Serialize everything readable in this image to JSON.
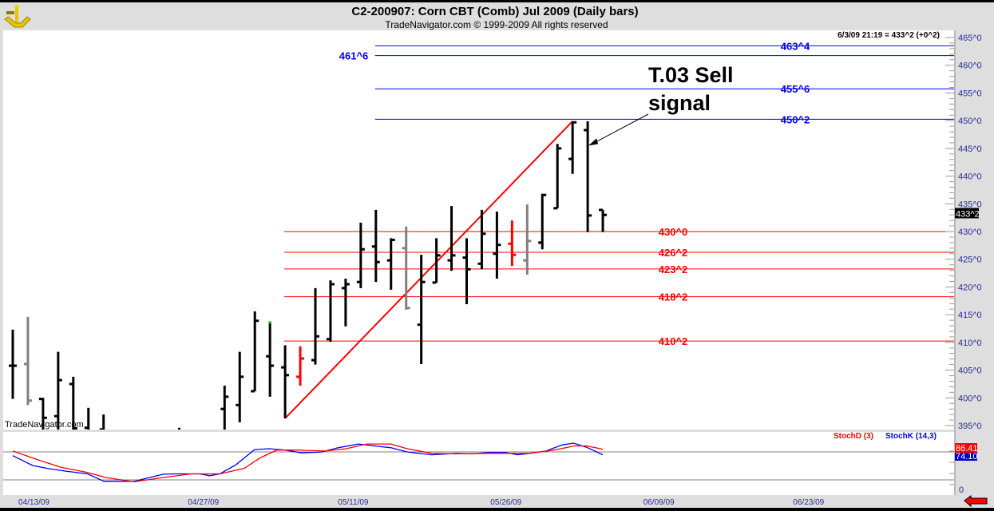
{
  "header": {
    "title": "C2-200907:  Corn CBT (Comb) Jul 2009  (Daily bars)",
    "subtitle": "TradeNavigator.com © 1999-2009 All rights reserved",
    "quote": "6/3/09 21:19 = 433^2 (+0^2)",
    "watermark": "TradeNavigator.com",
    "logo": "sextant-logo-icon"
  },
  "colors": {
    "up": "#000000",
    "gray": "#808080",
    "red": "#ff0000",
    "blue": "#0000ff",
    "axis_text": "#2b2b9b",
    "panel_bg": "#dedede"
  },
  "chart_data": {
    "type": "ohlc",
    "title": "C2-200907: Corn CBT (Comb) Jul 2009 (Daily bars)",
    "x_unit": "trading-day index",
    "ylim": [
      395,
      465
    ],
    "y_ticks": [
      "465^0",
      "460^0",
      "455^0",
      "450^0",
      "445^0",
      "440^0",
      "435^0",
      "430^0",
      "425^0",
      "420^0",
      "415^0",
      "410^0",
      "405^0",
      "400^0",
      "395^0"
    ],
    "y_tick_values": [
      465,
      460,
      455,
      450,
      445,
      440,
      435,
      430,
      425,
      420,
      415,
      410,
      405,
      400,
      395
    ],
    "last_price_label": "433^2",
    "last_price": 433.25,
    "x_ticks": [
      {
        "label": "04/13/09",
        "i": 1.4
      },
      {
        "label": "04/27/09",
        "i": 12.6
      },
      {
        "label": "05/11/09",
        "i": 22.5
      },
      {
        "label": "05/26/09",
        "i": 32.6
      },
      {
        "label": "06/09/09",
        "i": 42.7
      },
      {
        "label": "06/23/09",
        "i": 52.6
      }
    ],
    "bars": [
      {
        "i": 0,
        "o": 405.8,
        "h": 412.3,
        "l": 399.8,
        "c": 405.8,
        "color": "black"
      },
      {
        "i": 1,
        "o": 406.1,
        "h": 414.6,
        "l": 398.7,
        "c": 399.5,
        "color": "gray"
      },
      {
        "i": 2,
        "o": 399.8,
        "h": 400.0,
        "l": 393,
        "c": 396.4,
        "color": "black"
      },
      {
        "i": 3,
        "o": 396.7,
        "h": 408.3,
        "l": 392,
        "c": 403.2,
        "color": "black"
      },
      {
        "i": 4,
        "o": 402.5,
        "h": 403.8,
        "l": 392,
        "c": 394.5,
        "color": "black"
      },
      {
        "i": 5,
        "o": 394.6,
        "h": 398.2,
        "l": 392,
        "c": 393.5,
        "color": "black"
      },
      {
        "i": 6,
        "o": 394.3,
        "h": 397.0,
        "l": 392,
        "c": 393.5,
        "color": "black"
      },
      {
        "i": 11,
        "o": 394.0,
        "h": 394.6,
        "l": 390,
        "c": 393.0,
        "color": "black"
      },
      {
        "i": 14,
        "o": 398.0,
        "h": 402.2,
        "l": 392,
        "c": 400.2,
        "color": "black"
      },
      {
        "i": 15,
        "o": 398.7,
        "h": 408.3,
        "l": 395.6,
        "c": 403.8,
        "color": "black"
      },
      {
        "i": 16,
        "o": 401.2,
        "h": 415.6,
        "l": 401.2,
        "c": 413.9,
        "color": "black"
      },
      {
        "i": 17,
        "o": 407.5,
        "h": 413.7,
        "l": 400.2,
        "c": 405.8,
        "color": "black"
      },
      {
        "i": 18,
        "o": 405.5,
        "h": 409.5,
        "l": 396.3,
        "c": 404.1,
        "color": "black"
      },
      {
        "i": 19,
        "o": 403.8,
        "h": 409.3,
        "l": 402.2,
        "c": 407.1,
        "color": "red"
      },
      {
        "i": 20,
        "o": 406.8,
        "h": 419.8,
        "l": 406.0,
        "c": 411.1,
        "color": "black"
      },
      {
        "i": 21,
        "o": 410.6,
        "h": 421.2,
        "l": 410.1,
        "c": 420.5,
        "color": "black"
      },
      {
        "i": 22,
        "o": 419.8,
        "h": 421.5,
        "l": 412.9,
        "c": 420.5,
        "color": "black"
      },
      {
        "i": 23,
        "o": 420.9,
        "h": 431.6,
        "l": 419.8,
        "c": 426.8,
        "color": "black"
      },
      {
        "i": 24,
        "o": 427.3,
        "h": 433.9,
        "l": 420.9,
        "c": 424.5,
        "color": "black"
      },
      {
        "i": 25,
        "o": 424.8,
        "h": 428.8,
        "l": 419.5,
        "c": 428.5,
        "color": "black"
      },
      {
        "i": 26,
        "o": 427.0,
        "h": 430.9,
        "l": 415.9,
        "c": 416.2,
        "color": "gray"
      },
      {
        "i": 27,
        "o": 413.2,
        "h": 425.8,
        "l": 406.1,
        "c": 420.9,
        "color": "black"
      },
      {
        "i": 28,
        "o": 420.8,
        "h": 428.8,
        "l": 420.8,
        "c": 425.7,
        "color": "black"
      },
      {
        "i": 29,
        "o": 424.8,
        "h": 434.6,
        "l": 422.9,
        "c": 425.7,
        "color": "black"
      },
      {
        "i": 30,
        "o": 425.3,
        "h": 428.8,
        "l": 416.9,
        "c": 423.2,
        "color": "black"
      },
      {
        "i": 31,
        "o": 424.2,
        "h": 433.9,
        "l": 423.2,
        "c": 429.6,
        "color": "black"
      },
      {
        "i": 32,
        "o": 426.0,
        "h": 433.6,
        "l": 421.5,
        "c": 427.6,
        "color": "black"
      },
      {
        "i": 33,
        "o": 427.8,
        "h": 432.0,
        "l": 423.8,
        "c": 425.8,
        "color": "red"
      },
      {
        "i": 34,
        "o": 424.8,
        "h": 434.9,
        "l": 422.2,
        "c": 428.3,
        "color": "gray"
      },
      {
        "i": 35,
        "o": 428.0,
        "h": 436.8,
        "l": 426.8,
        "c": 436.6,
        "color": "black"
      },
      {
        "i": 36,
        "o": 434.2,
        "h": 445.8,
        "l": 434.2,
        "c": 445.0,
        "color": "black"
      },
      {
        "i": 37,
        "o": 443.1,
        "h": 449.9,
        "l": 440.4,
        "c": 449.7,
        "color": "black"
      },
      {
        "i": 38,
        "o": 448.3,
        "h": 449.9,
        "l": 429.9,
        "c": 432.9,
        "color": "black"
      },
      {
        "i": 39,
        "o": 433.9,
        "h": 433.9,
        "l": 429.9,
        "c": 433.0,
        "color": "black"
      }
    ],
    "blue_levels": [
      {
        "label": "463^4",
        "value": 463.5,
        "from_i": 24,
        "label_side": "right"
      },
      {
        "label": "461^6",
        "value": 461.75,
        "from_i": 24,
        "label_side": "left"
      },
      {
        "label": "455^6",
        "value": 455.75,
        "from_i": 24,
        "label_side": "right"
      },
      {
        "label": "450^2",
        "value": 450.25,
        "from_i": 24,
        "label_side": "right"
      }
    ],
    "red_levels": [
      {
        "label": "430^0",
        "value": 430.0,
        "from_i": 18
      },
      {
        "label": "426^2",
        "value": 426.25,
        "from_i": 18
      },
      {
        "label": "423^2",
        "value": 423.25,
        "from_i": 18
      },
      {
        "label": "418^2",
        "value": 418.25,
        "from_i": 18
      },
      {
        "label": "410^2",
        "value": 410.25,
        "from_i": 18
      }
    ],
    "trendline": {
      "from": {
        "i": 18,
        "price": 396.3
      },
      "to": {
        "i": 37,
        "price": 449.9
      }
    },
    "annotation": {
      "lines": [
        "T.03 Sell",
        "signal"
      ],
      "points_to": {
        "i": 38,
        "price": 445.5
      }
    },
    "stochastic": {
      "ylim": [
        0,
        100
      ],
      "levels": [
        80,
        20
      ],
      "axis_label": "0",
      "d_label": "StochD (3)",
      "k_label": "StochK (14,3)",
      "d_value": "86.41",
      "k_value": "74.10",
      "k_series": [
        [
          0,
          72
        ],
        [
          1.31,
          51
        ],
        [
          2.39,
          44
        ],
        [
          3.46,
          39
        ],
        [
          4.94,
          33
        ],
        [
          6.02,
          17
        ],
        [
          8.04,
          17
        ],
        [
          9.92,
          32
        ],
        [
          10.73,
          33
        ],
        [
          12.35,
          33
        ],
        [
          13.02,
          29
        ],
        [
          13.69,
          33
        ],
        [
          14.77,
          53
        ],
        [
          15.98,
          85
        ],
        [
          16.92,
          87
        ],
        [
          18,
          84
        ],
        [
          19.08,
          78
        ],
        [
          20.42,
          80
        ],
        [
          21.5,
          89
        ],
        [
          22.85,
          97
        ],
        [
          23.92,
          93
        ],
        [
          25,
          89
        ],
        [
          26.08,
          80
        ],
        [
          27.69,
          74
        ],
        [
          29.31,
          77
        ],
        [
          30.39,
          76
        ],
        [
          31.46,
          79
        ],
        [
          32.54,
          79
        ],
        [
          33.35,
          74
        ],
        [
          34.16,
          77
        ],
        [
          35.23,
          82
        ],
        [
          36.31,
          95
        ],
        [
          37.06,
          99
        ],
        [
          37.93,
          90
        ],
        [
          39,
          74
        ]
      ],
      "d_series": [
        [
          0,
          82
        ],
        [
          1.85,
          61
        ],
        [
          3.19,
          47
        ],
        [
          4.94,
          36
        ],
        [
          6.15,
          25
        ],
        [
          8.04,
          16
        ],
        [
          9.92,
          25
        ],
        [
          11.8,
          33
        ],
        [
          13.69,
          33
        ],
        [
          15.31,
          45
        ],
        [
          16.38,
          68
        ],
        [
          17.46,
          84
        ],
        [
          18.81,
          84
        ],
        [
          20.69,
          82
        ],
        [
          22.04,
          87
        ],
        [
          23.39,
          97
        ],
        [
          25,
          97
        ],
        [
          26.08,
          87
        ],
        [
          27.69,
          77
        ],
        [
          29.31,
          76
        ],
        [
          31.46,
          77
        ],
        [
          34.16,
          77
        ],
        [
          35.77,
          84
        ],
        [
          37.12,
          93
        ],
        [
          37.93,
          93
        ],
        [
          39,
          86
        ]
      ]
    }
  }
}
